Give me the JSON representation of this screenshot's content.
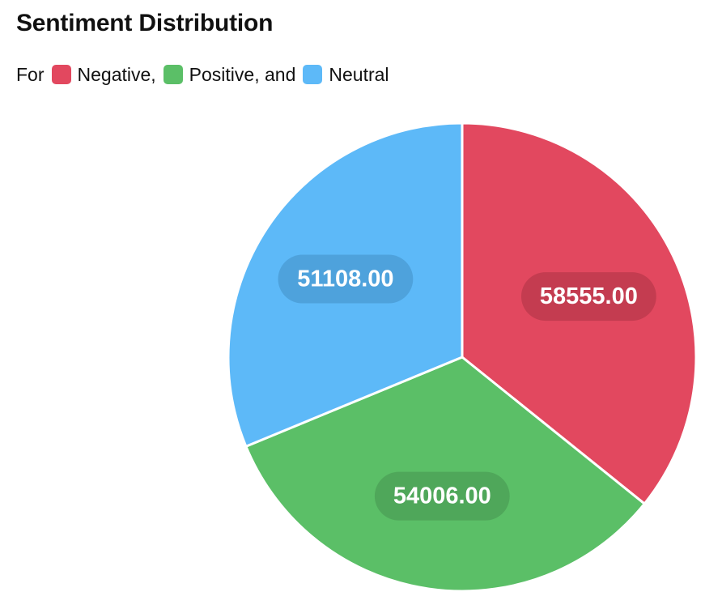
{
  "chart_data": {
    "type": "pie",
    "title": "Sentiment Distribution",
    "legend_prefix": "For",
    "legend_placement": "top-left",
    "categories": [
      "Negative",
      "Positive",
      "Neutral"
    ],
    "values": [
      58555.0,
      54006.0,
      51108.0
    ],
    "value_labels": [
      "58555.00",
      "54006.00",
      "51108.00"
    ],
    "legend_labels": [
      "Negative,",
      "Positive, and",
      "Neutral"
    ],
    "colors": [
      "#e2485f",
      "#5bbf67",
      "#5db9f8"
    ],
    "label_colors": [
      "#c43c50",
      "#4fa75a",
      "#4ea2dc"
    ]
  }
}
